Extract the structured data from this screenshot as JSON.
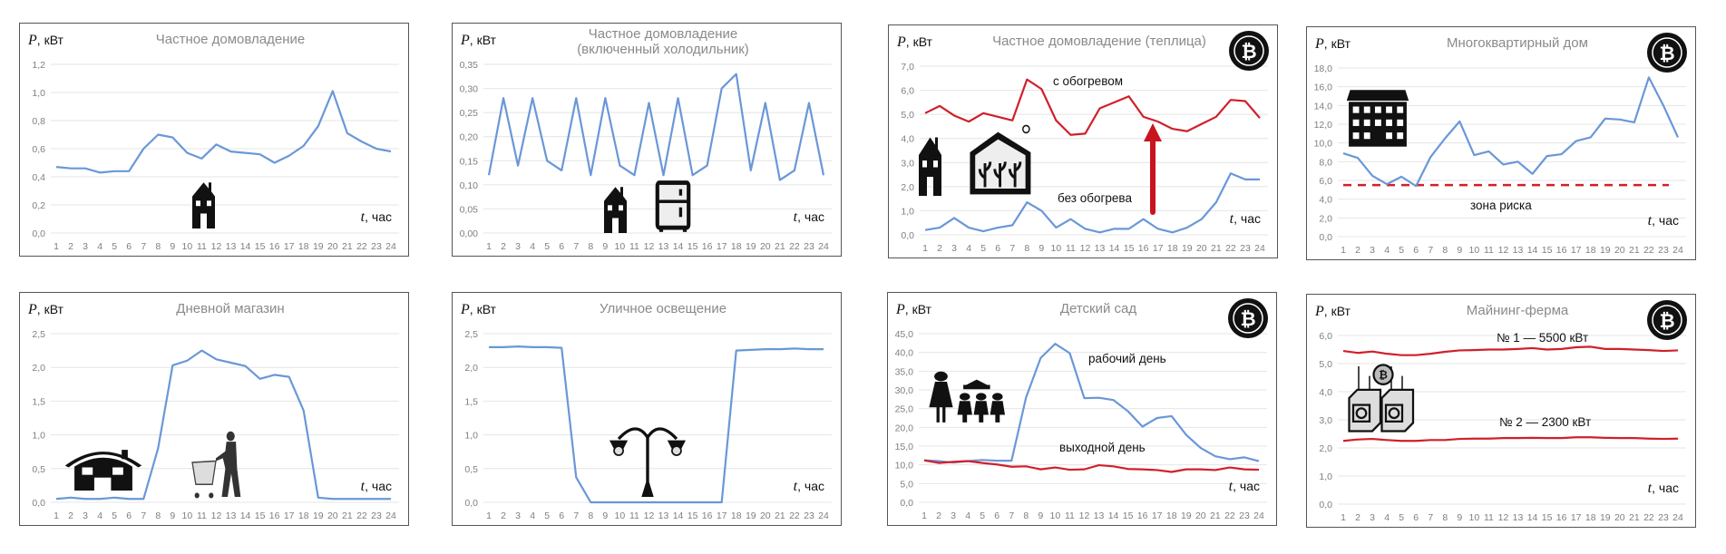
{
  "chart_data": [
    {
      "type": "line",
      "title": [
        "Частное домовладение"
      ],
      "ylabel": "кВт",
      "ylabel_var": "P",
      "xlabel": "час",
      "xlabel_var": "t",
      "ylim": [
        0,
        1.2
      ],
      "yticks": [
        "0,0",
        "0,2",
        "0,4",
        "0,6",
        "0,8",
        "1,0",
        "1,2"
      ],
      "grid": true,
      "icons": [
        "house-icon"
      ],
      "bitcoin": false,
      "categories": [
        1,
        2,
        3,
        4,
        5,
        6,
        7,
        8,
        9,
        10,
        11,
        12,
        13,
        14,
        15,
        16,
        17,
        18,
        19,
        20,
        21,
        22,
        23,
        24
      ],
      "series": [
        {
          "color": "#6a97d8",
          "values": [
            0.47,
            0.46,
            0.46,
            0.43,
            0.44,
            0.44,
            0.6,
            0.7,
            0.68,
            0.57,
            0.53,
            0.63,
            0.58,
            0.57,
            0.56,
            0.5,
            0.55,
            0.62,
            0.76,
            1.01,
            0.71,
            0.65,
            0.6,
            0.58
          ]
        }
      ],
      "annotations": []
    },
    {
      "type": "line",
      "title": [
        "Частное домовладение",
        "(включенный холодильник)"
      ],
      "ylabel": "кВт",
      "ylabel_var": "P",
      "xlabel": "час",
      "xlabel_var": "t",
      "ylim": [
        0,
        0.35
      ],
      "yticks": [
        "0,00",
        "0,05",
        "0,10",
        "0,15",
        "0,20",
        "0,25",
        "0,30",
        "0,35"
      ],
      "grid": true,
      "icons": [
        "house-icon",
        "fridge-icon"
      ],
      "bitcoin": false,
      "categories": [
        1,
        2,
        3,
        4,
        5,
        6,
        7,
        8,
        9,
        10,
        11,
        12,
        13,
        14,
        15,
        16,
        17,
        18,
        19,
        20,
        21,
        22,
        23,
        24
      ],
      "series": [
        {
          "color": "#6a97d8",
          "values": [
            0.12,
            0.28,
            0.14,
            0.28,
            0.15,
            0.13,
            0.28,
            0.12,
            0.28,
            0.14,
            0.12,
            0.27,
            0.12,
            0.28,
            0.12,
            0.14,
            0.3,
            0.33,
            0.13,
            0.27,
            0.11,
            0.13,
            0.27,
            0.12
          ]
        }
      ],
      "annotations": []
    },
    {
      "type": "line",
      "title": [
        "Частное домовладение (теплица)"
      ],
      "ylabel": "кВт",
      "ylabel_var": "P",
      "xlabel": "час",
      "xlabel_var": "t",
      "ylim": [
        0,
        7
      ],
      "yticks": [
        "0,0",
        "1,0",
        "2,0",
        "3,0",
        "4,0",
        "5,0",
        "6,0",
        "7,0"
      ],
      "grid": true,
      "icons": [
        "house-icon",
        "greenhouse-icon"
      ],
      "bitcoin": true,
      "categories": [
        1,
        2,
        3,
        4,
        5,
        6,
        7,
        8,
        9,
        10,
        11,
        12,
        13,
        14,
        15,
        16,
        17,
        18,
        19,
        20,
        21,
        22,
        23,
        24
      ],
      "series": [
        {
          "color": "#d0202a",
          "values": [
            5.05,
            5.35,
            4.95,
            4.7,
            5.05,
            4.9,
            4.75,
            6.45,
            6.05,
            4.75,
            4.15,
            4.2,
            5.25,
            5.5,
            5.75,
            4.9,
            4.7,
            4.4,
            4.3,
            4.6,
            4.9,
            5.6,
            5.55,
            4.85
          ]
        },
        {
          "color": "#6a97d8",
          "values": [
            0.2,
            0.3,
            0.7,
            0.3,
            0.15,
            0.3,
            0.4,
            1.35,
            1.0,
            0.3,
            0.65,
            0.25,
            0.1,
            0.25,
            0.25,
            0.65,
            0.25,
            0.1,
            0.3,
            0.65,
            1.35,
            2.55,
            2.3,
            2.3
          ]
        }
      ],
      "annotations": [
        "с обогревом",
        "без обогрева"
      ],
      "arrow": {
        "color": "#c8141e",
        "direction": "up"
      }
    },
    {
      "type": "line",
      "title": [
        "Многоквартирный дом"
      ],
      "ylabel": "кВт",
      "ylabel_var": "P",
      "xlabel": "час",
      "xlabel_var": "t",
      "ylim": [
        0,
        18
      ],
      "yticks": [
        "0,0",
        "2,0",
        "4,0",
        "6,0",
        "8,0",
        "10,0",
        "12,0",
        "14,0",
        "16,0",
        "18,0"
      ],
      "grid": true,
      "icons": [
        "apartment-building-icon"
      ],
      "bitcoin": true,
      "categories": [
        1,
        2,
        3,
        4,
        5,
        6,
        7,
        8,
        9,
        10,
        11,
        12,
        13,
        14,
        15,
        16,
        17,
        18,
        19,
        20,
        21,
        22,
        23,
        24
      ],
      "series": [
        {
          "color": "#6a97d8",
          "values": [
            8.9,
            8.4,
            6.5,
            5.6,
            6.4,
            5.4,
            8.5,
            10.5,
            12.3,
            8.7,
            9.1,
            7.7,
            8.0,
            6.7,
            8.6,
            8.8,
            10.2,
            10.6,
            12.6,
            12.5,
            12.2,
            17.0,
            14.0,
            10.6
          ]
        }
      ],
      "threshold": {
        "value": 5.5,
        "color": "#d0202a",
        "style": "dashed"
      },
      "annotations": [
        "зона риска"
      ]
    },
    {
      "type": "line",
      "title": [
        "Дневной магазин"
      ],
      "ylabel": "кВт",
      "ylabel_var": "P",
      "xlabel": "час",
      "xlabel_var": "t",
      "ylim": [
        0,
        2.5
      ],
      "yticks": [
        "0,0",
        "0,5",
        "1,0",
        "1,5",
        "2,0",
        "2,5"
      ],
      "grid": true,
      "icons": [
        "shop-house-icon",
        "shopper-icon"
      ],
      "bitcoin": false,
      "categories": [
        1,
        2,
        3,
        4,
        5,
        6,
        7,
        8,
        9,
        10,
        11,
        12,
        13,
        14,
        15,
        16,
        17,
        18,
        19,
        20,
        21,
        22,
        23,
        24
      ],
      "series": [
        {
          "color": "#6a97d8",
          "values": [
            0.05,
            0.07,
            0.05,
            0.05,
            0.07,
            0.05,
            0.05,
            0.8,
            2.03,
            2.1,
            2.25,
            2.12,
            2.07,
            2.02,
            1.83,
            1.89,
            1.86,
            1.36,
            0.07,
            0.05,
            0.05,
            0.05,
            0.05,
            0.05
          ]
        }
      ],
      "annotations": []
    },
    {
      "type": "line",
      "title": [
        "Уличное освещение"
      ],
      "ylabel": "кВт",
      "ylabel_var": "P",
      "xlabel": "час",
      "xlabel_var": "t",
      "ylim": [
        0,
        2.5
      ],
      "yticks": [
        "0,0",
        "0,5",
        "1,0",
        "1,5",
        "2,0",
        "2,5"
      ],
      "grid": true,
      "icons": [
        "street-lamp-icon"
      ],
      "bitcoin": false,
      "categories": [
        1,
        2,
        3,
        4,
        5,
        6,
        7,
        8,
        9,
        10,
        11,
        12,
        13,
        14,
        15,
        16,
        17,
        18,
        19,
        20,
        21,
        22,
        23,
        24
      ],
      "series": [
        {
          "color": "#6a97d8",
          "values": [
            2.3,
            2.3,
            2.31,
            2.3,
            2.3,
            2.29,
            0.37,
            0,
            0,
            0,
            0,
            0,
            0,
            0,
            0,
            0,
            0,
            2.25,
            2.26,
            2.27,
            2.27,
            2.28,
            2.27,
            2.27
          ]
        }
      ],
      "annotations": []
    },
    {
      "type": "line",
      "title": [
        "Детский сад"
      ],
      "ylabel": "кВт",
      "ylabel_var": "P",
      "xlabel": "час",
      "xlabel_var": "t",
      "ylim": [
        0,
        45
      ],
      "yticks": [
        "0,0",
        "5,0",
        "10,0",
        "15,0",
        "20,0",
        "25,0",
        "30,0",
        "35,0",
        "40,0",
        "45,0"
      ],
      "grid": true,
      "icons": [
        "kindergarten-family-icon"
      ],
      "bitcoin": true,
      "categories": [
        1,
        2,
        3,
        4,
        5,
        6,
        7,
        8,
        9,
        10,
        11,
        12,
        13,
        14,
        15,
        16,
        17,
        18,
        19,
        20,
        21,
        22,
        23,
        24
      ],
      "series": [
        {
          "color": "#6a97d8",
          "values": [
            11.2,
            11.0,
            10.6,
            11.0,
            11.3,
            11.1,
            11.1,
            28.0,
            38.5,
            42.3,
            39.8,
            27.8,
            27.9,
            27.3,
            24.3,
            20.2,
            22.5,
            23.0,
            18.0,
            14.5,
            12.3,
            11.5,
            12.0,
            11.0
          ]
        },
        {
          "color": "#d0202a",
          "values": [
            11.2,
            10.5,
            10.8,
            11.0,
            10.5,
            10.1,
            9.5,
            9.6,
            8.8,
            9.3,
            8.7,
            8.8,
            9.9,
            9.6,
            8.9,
            8.8,
            8.6,
            8.1,
            8.8,
            8.8,
            8.6,
            9.3,
            8.8,
            8.7
          ]
        }
      ],
      "annotations": [
        "рабочий день",
        "выходной день"
      ]
    },
    {
      "type": "line",
      "title": [
        "Майнинг-ферма"
      ],
      "ylabel": "кВт",
      "ylabel_var": "P",
      "xlabel": "час",
      "xlabel_var": "t",
      "ylim": [
        0,
        6
      ],
      "yticks": [
        "0,0",
        "1,0",
        "2,0",
        "3,0",
        "4,0",
        "5,0",
        "6,0"
      ],
      "grid": true,
      "icons": [
        "mining-rig-icon"
      ],
      "bitcoin": true,
      "categories": [
        1,
        2,
        3,
        4,
        5,
        6,
        7,
        8,
        9,
        10,
        11,
        12,
        13,
        14,
        15,
        16,
        17,
        18,
        19,
        20,
        21,
        22,
        23,
        24
      ],
      "series": [
        {
          "color": "#d0202a",
          "values": [
            5.45,
            5.38,
            5.43,
            5.35,
            5.3,
            5.3,
            5.35,
            5.42,
            5.47,
            5.48,
            5.5,
            5.5,
            5.52,
            5.55,
            5.5,
            5.52,
            5.58,
            5.6,
            5.52,
            5.52,
            5.5,
            5.48,
            5.45,
            5.47
          ]
        },
        {
          "color": "#d0202a",
          "values": [
            2.25,
            2.3,
            2.32,
            2.28,
            2.25,
            2.25,
            2.28,
            2.28,
            2.32,
            2.33,
            2.33,
            2.35,
            2.35,
            2.36,
            2.35,
            2.35,
            2.38,
            2.38,
            2.36,
            2.35,
            2.35,
            2.33,
            2.32,
            2.33
          ]
        }
      ],
      "annotations": [
        "№ 1 — 5500 кВт",
        "№ 2 — 2300 кВт"
      ]
    }
  ]
}
